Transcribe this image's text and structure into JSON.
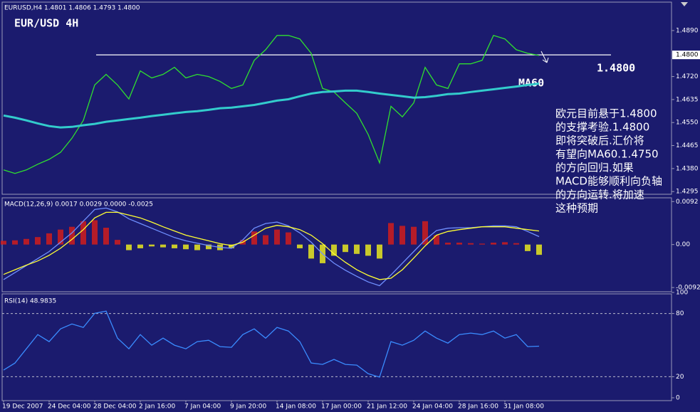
{
  "chart_data": [
    {
      "type": "line",
      "subtitle": "EURUSD,H4  1.4801 1.4806 1.4793 1.4800",
      "title": "EUR/USD 4H",
      "xlim": [
        -0.125,
        58.625
      ],
      "ylim": [
        1.4285,
        1.4995
      ],
      "yticks": [
        {
          "value": 1.489,
          "label": "1.4890"
        },
        {
          "value": 1.472,
          "label": "1.4720"
        },
        {
          "value": 1.4635,
          "label": "1.4635"
        },
        {
          "value": 1.455,
          "label": "1.4550"
        },
        {
          "value": 1.4465,
          "label": "1.4465"
        },
        {
          "value": 1.438,
          "label": "1.4380"
        },
        {
          "value": 1.4295,
          "label": "1.4295"
        }
      ],
      "level": {
        "value": 1.48,
        "label": "1.4800"
      },
      "series": [
        {
          "color": "#2fe02f",
          "values": [
            1.4375,
            1.4362,
            1.4375,
            1.4396,
            1.4414,
            1.444,
            1.4492,
            1.4558,
            1.4689,
            1.4728,
            1.4689,
            1.4637,
            1.4741,
            1.4715,
            1.4728,
            1.4754,
            1.4715,
            1.4728,
            1.472,
            1.4702,
            1.4676,
            1.4689,
            1.478,
            1.4819,
            1.4872,
            1.4872,
            1.4859,
            1.4806,
            1.4676,
            1.4663,
            1.4623,
            1.4584,
            1.4506,
            1.4401,
            1.461,
            1.4571,
            1.4623,
            1.4754,
            1.4689,
            1.4676,
            1.4767,
            1.4767,
            1.478,
            1.4872,
            1.4859,
            1.4819,
            1.4806,
            1.4798
          ]
        },
        {
          "name": "MA60",
          "color": "#33cccc",
          "values": [
            1.4576,
            1.4568,
            1.4558,
            1.4547,
            1.4537,
            1.4532,
            1.4534,
            1.454,
            1.4545,
            1.4553,
            1.4558,
            1.4563,
            1.4568,
            1.4574,
            1.4579,
            1.4584,
            1.4589,
            1.4592,
            1.4597,
            1.4603,
            1.4605,
            1.461,
            1.4615,
            1.4623,
            1.4631,
            1.4636,
            1.4647,
            1.4657,
            1.4663,
            1.4665,
            1.4668,
            1.4668,
            1.4663,
            1.4657,
            1.4652,
            1.4647,
            1.4642,
            1.4644,
            1.4649,
            1.4655,
            1.4657,
            1.4663,
            1.4668,
            1.4673,
            1.4678,
            1.4683,
            1.4689,
            1.4694
          ]
        }
      ],
      "note": [
        "欧元目前悬于1.4800",
        "的支撑考验.1.4800",
        "即将突破后.汇价将",
        "有望向MA60.1.4750",
        "的方向回归.如果",
        "MACD能够顺利向负轴",
        "的方向运转.将加速",
        "这种预期"
      ]
    },
    {
      "type": "macd",
      "title": "MACD(12,26,9) 0.0017 0.0029 0.0000 -0.0025",
      "xlim": [
        -0.125,
        58.625
      ],
      "ylim": [
        -0.0101,
        0.01
      ],
      "yticks": [
        {
          "value": 0.0092,
          "label": "0.0092"
        },
        {
          "value": 0,
          "label": "0.00"
        },
        {
          "value": -0.0092,
          "label": "-0.0092"
        }
      ],
      "histogram": {
        "color": "#d01c1c",
        "negative_color": "#e8e820",
        "values": [
          0.0008,
          0.0009,
          0.0012,
          0.0016,
          0.0024,
          0.0032,
          0.0038,
          0.005,
          0.0052,
          0.0036,
          0.001,
          -0.0012,
          -0.0008,
          -0.0004,
          -0.0006,
          -0.0008,
          -0.001,
          -0.0012,
          -0.001,
          -0.0012,
          -0.0008,
          0.001,
          0.0028,
          0.002,
          0.0032,
          0.0026,
          -0.0008,
          -0.003,
          -0.004,
          -0.0024,
          -0.0016,
          -0.002,
          -0.0024,
          -0.003,
          0.0046,
          0.004,
          0.0038,
          0.005,
          0.002,
          0.0004,
          0.0004,
          0.0003,
          0.0002,
          0.0004,
          0.0005,
          0.0003,
          -0.0014,
          -0.0022
        ]
      },
      "series": [
        {
          "color": "#6f8fff",
          "values": [
            -0.0075,
            -0.006,
            -0.0045,
            -0.003,
            -0.0015,
            0.0005,
            0.0025,
            0.005,
            0.0075,
            0.0078,
            0.007,
            0.0055,
            0.0045,
            0.0035,
            0.0025,
            0.0015,
            0.0008,
            0.0003,
            -0.0002,
            -0.0006,
            -0.0008,
            0.001,
            0.0035,
            0.0045,
            0.0048,
            0.004,
            0.0025,
            0.0005,
            -0.002,
            -0.004,
            -0.0055,
            -0.0068,
            -0.008,
            -0.0088,
            -0.0065,
            -0.004,
            -0.0015,
            0.001,
            0.003,
            0.0035,
            0.0036,
            0.0036,
            0.0038,
            0.004,
            0.004,
            0.0038,
            0.0028,
            0.0017
          ]
        },
        {
          "color": "#ffff33",
          "values": [
            -0.0064,
            -0.0054,
            -0.0044,
            -0.0035,
            -0.0023,
            -0.0008,
            0.0011,
            0.0032,
            0.0057,
            0.0069,
            0.0069,
            0.0063,
            0.0057,
            0.0048,
            0.0038,
            0.0029,
            0.002,
            0.0014,
            0.0008,
            0.0002,
            -0.0002,
            0.0005,
            0.002,
            0.0035,
            0.0041,
            0.0038,
            0.0032,
            0.002,
            0.0002,
            -0.002,
            -0.0038,
            -0.0054,
            -0.0066,
            -0.0075,
            -0.0072,
            -0.0054,
            -0.0029,
            -0.0003,
            0.002,
            0.0028,
            0.0032,
            0.0035,
            0.0038,
            0.0038,
            0.0038,
            0.0035,
            0.0032,
            0.0029
          ]
        }
      ]
    },
    {
      "type": "line",
      "title": "RSI(14) 48.9835",
      "xlim": [
        -0.125,
        58.625
      ],
      "ylim": [
        0,
        100
      ],
      "yticks": [
        100,
        80,
        20,
        0
      ],
      "levels": [
        80,
        20
      ],
      "xticks": [
        {
          "value": 0,
          "label": "19 Dec 2007"
        },
        {
          "value": 4,
          "label": "24 Dec 04:00"
        },
        {
          "value": 8,
          "label": "28 Dec 04:00"
        },
        {
          "value": 12,
          "label": "2 Jan 16:00"
        },
        {
          "value": 16,
          "label": "7 Jan 04:00"
        },
        {
          "value": 20,
          "label": "9 Jan 20:00"
        },
        {
          "value": 24,
          "label": "14 Jan 08:00"
        },
        {
          "value": 28,
          "label": "17 Jan 00:00"
        },
        {
          "value": 32,
          "label": "21 Jan 12:00"
        },
        {
          "value": 36,
          "label": "24 Jan 04:00"
        },
        {
          "value": 40,
          "label": "28 Jan 16:00"
        },
        {
          "value": 44,
          "label": "31 Jan 08:00"
        }
      ],
      "series": [
        {
          "color": "#3a8cff",
          "values": [
            26.3,
            33,
            46.5,
            60,
            53.3,
            65.4,
            70.1,
            66.8,
            80.2,
            82.3,
            56.6,
            46.5,
            60,
            49.9,
            56.6,
            49.9,
            46.5,
            53.3,
            54.6,
            48.6,
            47.9,
            60,
            65.4,
            56.6,
            66.8,
            63.4,
            53.3,
            33,
            31.7,
            36.4,
            31.7,
            31,
            22.9,
            19.6,
            53.3,
            49.9,
            54.6,
            63.4,
            56.6,
            51.9,
            60,
            61.4,
            60,
            63.4,
            56.6,
            60,
            48.6,
            48.98
          ]
        }
      ]
    }
  ]
}
